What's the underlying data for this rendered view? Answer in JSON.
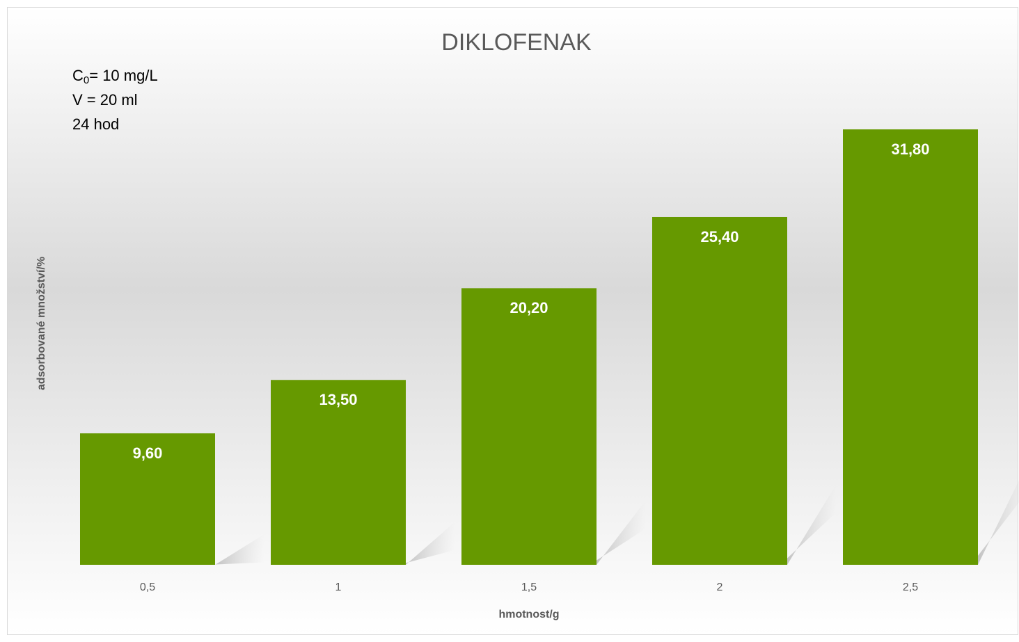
{
  "chart_data": {
    "type": "bar",
    "title": "DIKLOFENAK",
    "annotations": [
      [
        "C",
        "0",
        "= 10 mg/L"
      ],
      "V = 20 ml",
      "24 hod"
    ],
    "x_label": "hmotnost/g",
    "y_label": "adsorbované množství/%",
    "categories": [
      "0,5",
      "1",
      "1,5",
      "2",
      "2,5"
    ],
    "values": [
      9.6,
      13.5,
      20.2,
      25.4,
      31.8
    ],
    "value_labels": [
      "9,60",
      "13,50",
      "20,20",
      "25,40",
      "31,80"
    ],
    "color": "#669900",
    "ylim": [
      0,
      35
    ]
  }
}
